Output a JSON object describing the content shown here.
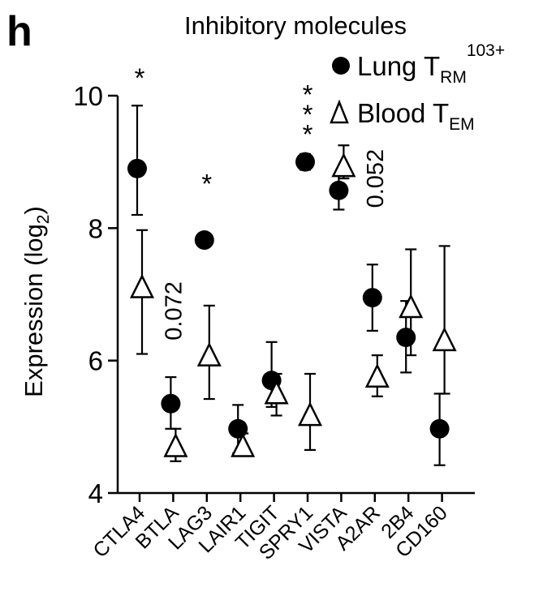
{
  "panel_label": "h",
  "chart_data": {
    "type": "scatter",
    "title": "Inhibitory molecules",
    "xlabel": "",
    "ylabel": "Expression (log",
    "ylabel_sub": "2",
    "ylabel_close": ")",
    "ylim": [
      4,
      10
    ],
    "yticks": [
      4,
      6,
      8,
      10
    ],
    "categories": [
      "CTLA4",
      "BTLA",
      "LAG3",
      "LAIR1",
      "TIGIT",
      "SPRY1",
      "VISTA",
      "A2AR",
      "2B4",
      "CD160"
    ],
    "legend": {
      "position": "top-right",
      "entries": [
        {
          "marker": "circle",
          "prefix": "Lung T",
          "sub": "RM",
          "sup": "103+"
        },
        {
          "marker": "triangle",
          "prefix": "Blood T",
          "sub": "EM",
          "sup": ""
        }
      ]
    },
    "series": [
      {
        "name": "Lung TRM 103+",
        "marker": "circle",
        "values": [
          8.9,
          5.35,
          7.82,
          4.97,
          5.7,
          9.0,
          8.57,
          6.95,
          6.35,
          4.97
        ],
        "err_low": [
          8.2,
          4.97,
          7.82,
          4.6,
          5.3,
          8.88,
          8.28,
          6.45,
          5.82,
          4.42
        ],
        "err_high": [
          9.85,
          5.75,
          7.82,
          5.33,
          6.28,
          9.12,
          8.8,
          7.45,
          6.9,
          5.5
        ]
      },
      {
        "name": "Blood TEM",
        "marker": "triangle",
        "values": [
          7.1,
          4.7,
          6.07,
          4.7,
          5.5,
          5.17,
          8.93,
          5.75,
          6.8,
          6.3
        ],
        "err_low": [
          6.1,
          4.48,
          5.42,
          4.6,
          5.17,
          4.65,
          8.75,
          5.46,
          6.08,
          5.5
        ],
        "err_high": [
          7.97,
          4.97,
          6.83,
          4.9,
          5.8,
          5.8,
          9.25,
          6.08,
          7.68,
          7.73
        ]
      }
    ],
    "annotations": [
      {
        "category": "CTLA4",
        "text": "*",
        "y": 10.35,
        "rotate": false
      },
      {
        "category": "BTLA",
        "text": "0.072",
        "y": 6.75,
        "rotate": true
      },
      {
        "category": "LAG3",
        "text": "*",
        "y": 8.75,
        "rotate": false
      },
      {
        "category": "SPRY1",
        "text": "*",
        "y": 10.1,
        "rotate": false
      },
      {
        "category": "SPRY1",
        "text": "*",
        "y": 9.8,
        "rotate": false
      },
      {
        "category": "SPRY1",
        "text": "*",
        "y": 9.5,
        "rotate": false
      },
      {
        "category": "A2AR",
        "text": "0.052",
        "y": 8.75,
        "rotate": true
      }
    ]
  }
}
